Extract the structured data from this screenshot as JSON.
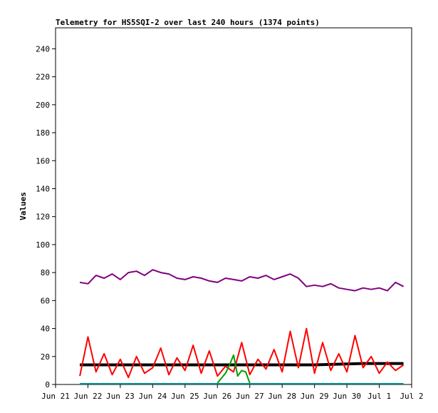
{
  "chart_data": {
    "type": "line",
    "title": "Telemetry for HS5SQI-2 over last 240 hours (1374 points)",
    "xlabel": "",
    "ylabel": "Values",
    "ylim": [
      0,
      255
    ],
    "yticks": [
      0,
      20,
      40,
      60,
      80,
      100,
      120,
      140,
      160,
      180,
      200,
      220,
      240
    ],
    "xlim": [
      "2024-06-21T00:00",
      "2024-07-02T00:00"
    ],
    "xticks": [
      {
        "date": "2024-06-21",
        "label": "Jun 21"
      },
      {
        "date": "2024-06-22",
        "label": "Jun 22"
      },
      {
        "date": "2024-06-23",
        "label": "Jun 23"
      },
      {
        "date": "2024-06-24",
        "label": "Jun 24"
      },
      {
        "date": "2024-06-25",
        "label": "Jun 25"
      },
      {
        "date": "2024-06-26",
        "label": "Jun 26"
      },
      {
        "date": "2024-06-27",
        "label": "Jun 27"
      },
      {
        "date": "2024-06-28",
        "label": "Jun 28"
      },
      {
        "date": "2024-06-29",
        "label": "Jun 29"
      },
      {
        "date": "2024-06-30",
        "label": "Jun 30"
      },
      {
        "date": "2024-07-01",
        "label": "Jul 1"
      },
      {
        "date": "2024-07-02",
        "label": "Jul 2"
      }
    ],
    "grid": false,
    "legend": "none",
    "series": [
      {
        "color": "#800080",
        "x": [
          "2024-06-21T18:00",
          "2024-06-22T00:00",
          "2024-06-22T06:00",
          "2024-06-22T12:00",
          "2024-06-22T18:00",
          "2024-06-23T00:00",
          "2024-06-23T06:00",
          "2024-06-23T12:00",
          "2024-06-23T18:00",
          "2024-06-24T00:00",
          "2024-06-24T06:00",
          "2024-06-24T12:00",
          "2024-06-24T18:00",
          "2024-06-25T00:00",
          "2024-06-25T06:00",
          "2024-06-25T12:00",
          "2024-06-25T18:00",
          "2024-06-26T00:00",
          "2024-06-26T06:00",
          "2024-06-26T12:00",
          "2024-06-26T18:00",
          "2024-06-27T00:00",
          "2024-06-27T06:00",
          "2024-06-27T12:00",
          "2024-06-27T18:00",
          "2024-06-28T00:00",
          "2024-06-28T06:00",
          "2024-06-28T12:00",
          "2024-06-28T18:00",
          "2024-06-29T00:00",
          "2024-06-29T06:00",
          "2024-06-29T12:00",
          "2024-06-29T18:00",
          "2024-06-30T00:00",
          "2024-06-30T06:00",
          "2024-06-30T12:00",
          "2024-06-30T18:00",
          "2024-07-01T00:00",
          "2024-07-01T06:00",
          "2024-07-01T12:00",
          "2024-07-01T18:00"
        ],
        "y": [
          73,
          72,
          78,
          76,
          79,
          75,
          80,
          81,
          78,
          82,
          80,
          79,
          76,
          75,
          77,
          76,
          74,
          73,
          76,
          75,
          74,
          77,
          76,
          78,
          75,
          77,
          79,
          76,
          70,
          71,
          70,
          72,
          69,
          68,
          67,
          69,
          68,
          69,
          67,
          73,
          70
        ]
      },
      {
        "color": "#000000",
        "x": [
          "2024-06-21T18:00",
          "2024-06-23T00:00",
          "2024-06-24T12:00",
          "2024-06-26T00:00",
          "2024-06-27T12:00",
          "2024-06-29T00:00",
          "2024-06-30T12:00",
          "2024-07-01T18:00"
        ],
        "y": [
          14,
          14,
          14,
          14,
          14,
          14,
          15,
          15
        ]
      },
      {
        "color": "#ff0000",
        "x": [
          "2024-06-21T18:00",
          "2024-06-22T00:00",
          "2024-06-22T06:00",
          "2024-06-22T12:00",
          "2024-06-22T18:00",
          "2024-06-23T00:00",
          "2024-06-23T06:00",
          "2024-06-23T12:00",
          "2024-06-23T18:00",
          "2024-06-24T00:00",
          "2024-06-24T06:00",
          "2024-06-24T12:00",
          "2024-06-24T18:00",
          "2024-06-25T00:00",
          "2024-06-25T06:00",
          "2024-06-25T12:00",
          "2024-06-25T18:00",
          "2024-06-26T00:00",
          "2024-06-26T06:00",
          "2024-06-26T12:00",
          "2024-06-26T18:00",
          "2024-06-27T00:00",
          "2024-06-27T06:00",
          "2024-06-27T12:00",
          "2024-06-27T18:00",
          "2024-06-28T00:00",
          "2024-06-28T06:00",
          "2024-06-28T12:00",
          "2024-06-28T18:00",
          "2024-06-29T00:00",
          "2024-06-29T06:00",
          "2024-06-29T12:00",
          "2024-06-29T18:00",
          "2024-06-30T00:00",
          "2024-06-30T06:00",
          "2024-06-30T12:00",
          "2024-06-30T18:00",
          "2024-07-01T00:00",
          "2024-07-01T06:00",
          "2024-07-01T12:00",
          "2024-07-01T18:00"
        ],
        "y": [
          6,
          34,
          9,
          22,
          7,
          18,
          5,
          20,
          8,
          12,
          26,
          7,
          19,
          10,
          28,
          8,
          24,
          6,
          13,
          9,
          30,
          7,
          18,
          11,
          25,
          9,
          38,
          12,
          40,
          8,
          30,
          10,
          22,
          9,
          35,
          12,
          20,
          8,
          16,
          10,
          14
        ]
      },
      {
        "color": "#00a000",
        "x": [
          "2024-06-26T00:00",
          "2024-06-26T06:00",
          "2024-06-26T09:00",
          "2024-06-26T12:00",
          "2024-06-26T15:00",
          "2024-06-26T18:00",
          "2024-06-26T21:00",
          "2024-06-27T00:00"
        ],
        "y": [
          1,
          8,
          14,
          21,
          6,
          10,
          9,
          1
        ]
      },
      {
        "color": "#008b8b",
        "x": [
          "2024-06-21T18:00",
          "2024-07-01T18:00"
        ],
        "y": [
          0.5,
          0.5
        ]
      }
    ]
  }
}
